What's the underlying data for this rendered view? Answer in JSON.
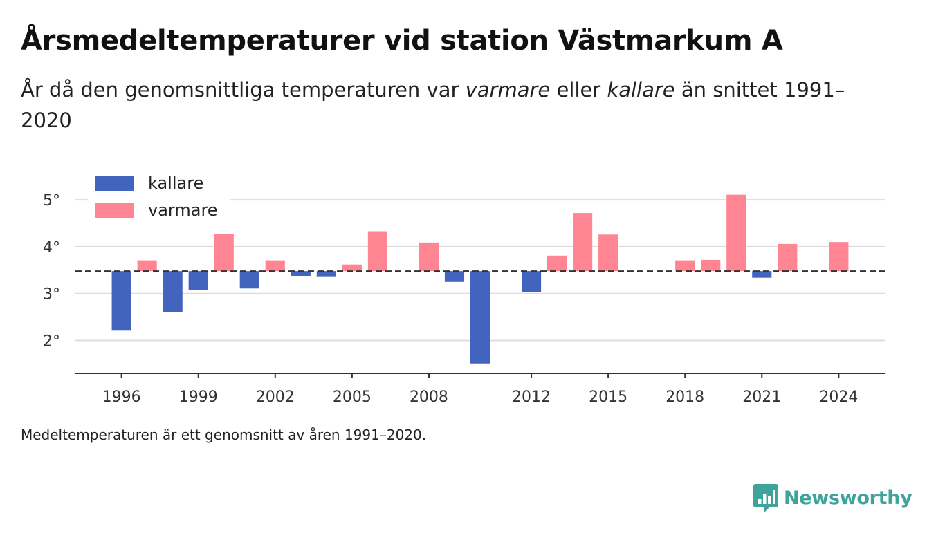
{
  "header": {
    "title": "Årsmedeltemperaturer vid station Västmarkum A",
    "subtitle_part1": "År då den genomsnittliga temperaturen var ",
    "subtitle_em1": "varmare",
    "subtitle_part2": " eller ",
    "subtitle_em2": "kallare",
    "subtitle_part3": " än snittet 1991–2020"
  },
  "footnote": "Medeltemperaturen är ett genomsnitt av åren 1991–2020.",
  "logo": {
    "text": "Newsworthy",
    "icon": "bar-chart-speech-icon"
  },
  "colors": {
    "kallare": "#4263be",
    "varmare": "#ff8593",
    "grid": "#dddddd",
    "baseline": "#333333",
    "logo": "#3ea39b"
  },
  "chart_data": {
    "type": "bar",
    "baseline": 3.48,
    "baseline_style": "dashed",
    "ylim": [
      1.3,
      5.4
    ],
    "xlim": [
      1994.2,
      2025.8
    ],
    "yticks": [
      2,
      3,
      4,
      5
    ],
    "ytick_labels": [
      "2°",
      "3°",
      "4°",
      "5°"
    ],
    "xticks": [
      1996,
      1999,
      2002,
      2005,
      2008,
      2012,
      2015,
      2018,
      2021,
      2024
    ],
    "xtick_labels": [
      "1996",
      "1999",
      "2002",
      "2005",
      "2008",
      "2012",
      "2015",
      "2018",
      "2021",
      "2024"
    ],
    "grid": true,
    "legend_position": "top-left",
    "series": [
      {
        "name": "kallare",
        "color": "#4263be"
      },
      {
        "name": "varmare",
        "color": "#ff8593"
      }
    ],
    "bars": [
      {
        "year": 1996,
        "value": 2.21,
        "series": "kallare"
      },
      {
        "year": 1997,
        "value": 3.71,
        "series": "varmare"
      },
      {
        "year": 1998,
        "value": 2.6,
        "series": "kallare"
      },
      {
        "year": 1999,
        "value": 3.08,
        "series": "kallare"
      },
      {
        "year": 2000,
        "value": 4.27,
        "series": "varmare"
      },
      {
        "year": 2001,
        "value": 3.11,
        "series": "kallare"
      },
      {
        "year": 2002,
        "value": 3.71,
        "series": "varmare"
      },
      {
        "year": 2003,
        "value": 3.38,
        "series": "kallare"
      },
      {
        "year": 2004,
        "value": 3.37,
        "series": "kallare"
      },
      {
        "year": 2005,
        "value": 3.62,
        "series": "varmare"
      },
      {
        "year": 2006,
        "value": 4.33,
        "series": "varmare"
      },
      {
        "year": 2008,
        "value": 4.09,
        "series": "varmare"
      },
      {
        "year": 2009,
        "value": 3.25,
        "series": "kallare"
      },
      {
        "year": 2010,
        "value": 1.51,
        "series": "kallare"
      },
      {
        "year": 2012,
        "value": 3.03,
        "series": "kallare"
      },
      {
        "year": 2013,
        "value": 3.81,
        "series": "varmare"
      },
      {
        "year": 2014,
        "value": 4.72,
        "series": "varmare"
      },
      {
        "year": 2015,
        "value": 4.26,
        "series": "varmare"
      },
      {
        "year": 2018,
        "value": 3.71,
        "series": "varmare"
      },
      {
        "year": 2019,
        "value": 3.72,
        "series": "varmare"
      },
      {
        "year": 2020,
        "value": 5.11,
        "series": "varmare"
      },
      {
        "year": 2021,
        "value": 3.34,
        "series": "kallare"
      },
      {
        "year": 2022,
        "value": 4.06,
        "series": "varmare"
      },
      {
        "year": 2024,
        "value": 4.1,
        "series": "varmare"
      }
    ]
  }
}
